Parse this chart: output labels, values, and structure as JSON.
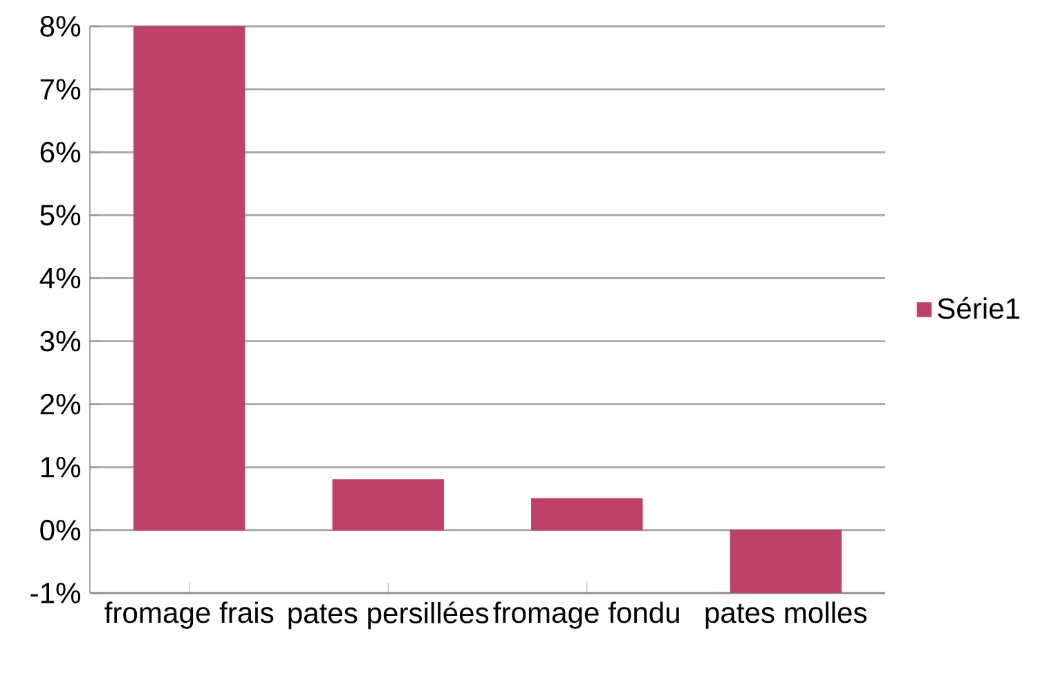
{
  "chart_data": {
    "type": "bar",
    "categories": [
      "fromage frais",
      "pates persillées",
      "fromage fondu",
      "pates molles"
    ],
    "series": [
      {
        "name": "Série1",
        "color": "#be4169",
        "values": [
          8,
          0.8,
          0.5,
          -1
        ]
      }
    ],
    "ylim": [
      -1,
      8
    ],
    "yticks": [
      {
        "value": -1,
        "label": "-1%"
      },
      {
        "value": 0,
        "label": "0%"
      },
      {
        "value": 1,
        "label": "1%"
      },
      {
        "value": 2,
        "label": "2%"
      },
      {
        "value": 3,
        "label": "3%"
      },
      {
        "value": 4,
        "label": "4%"
      },
      {
        "value": 5,
        "label": "5%"
      },
      {
        "value": 6,
        "label": "6%"
      },
      {
        "value": 7,
        "label": "7%"
      },
      {
        "value": 8,
        "label": "8%"
      }
    ],
    "grid": "y",
    "legend": "right"
  }
}
